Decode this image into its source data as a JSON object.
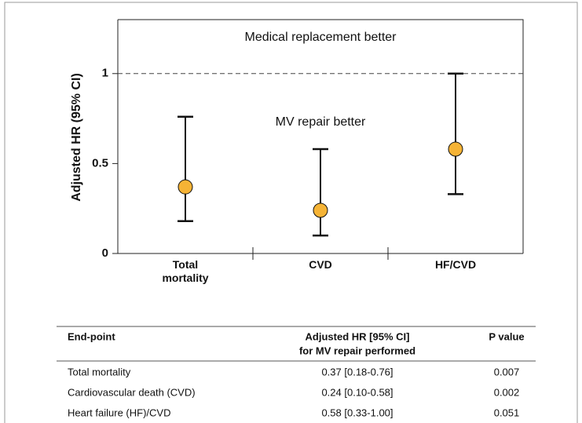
{
  "chart_data": {
    "type": "errorbar",
    "y_label": "Adjusted HR (95% CI)",
    "categories": [
      "Total mortality",
      "CVD",
      "HF/CVD"
    ],
    "values": [
      0.37,
      0.24,
      0.58
    ],
    "lower": [
      0.18,
      0.1,
      0.33
    ],
    "upper": [
      0.76,
      0.58,
      1.0
    ],
    "color": "#f5b335",
    "ylim": [
      0,
      1.3
    ],
    "yticks": [
      0,
      0.5,
      1
    ],
    "reference_line": 1,
    "annotations": [
      {
        "text": "Medical replacement better",
        "y": 1.2
      },
      {
        "text": "MV repair better",
        "y": 0.73
      }
    ]
  },
  "table": {
    "header": {
      "endpoint": "End-point",
      "hr": [
        "Adjusted HR [95% CI]",
        "for MV repair performed"
      ],
      "p": "P value"
    },
    "rows": [
      [
        "Total mortality",
        "0.37 [0.18-0.76]",
        "0.007"
      ],
      [
        "Cardiovascular death (CVD)",
        "0.24 [0.10-0.58]",
        "0.002"
      ],
      [
        "Heart failure (HF)/CVD",
        "0.58 [0.33-1.00]",
        "0.051"
      ]
    ]
  }
}
